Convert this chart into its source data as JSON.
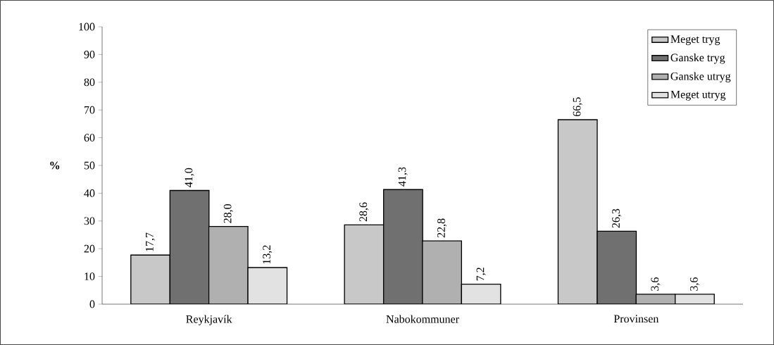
{
  "chart_data": {
    "type": "bar",
    "ylabel": "%",
    "categories": [
      "Reykjavík",
      "Nabokommuner",
      "Provinsen"
    ],
    "series": [
      {
        "name": "Meget tryg",
        "color": "#c8c8c8",
        "values": [
          17.7,
          28.6,
          66.5
        ],
        "value_labels": [
          "17,7",
          "28,6",
          "66,5"
        ]
      },
      {
        "name": "Ganske tryg",
        "color": "#707070",
        "values": [
          41.0,
          41.3,
          26.3
        ],
        "value_labels": [
          "41,0",
          "41,3",
          "26,3"
        ]
      },
      {
        "name": "Ganske utryg",
        "color": "#b0b0b0",
        "values": [
          28.0,
          22.8,
          3.6
        ],
        "value_labels": [
          "28,0",
          "22,8",
          "3,6"
        ]
      },
      {
        "name": "Meget utryg",
        "color": "#e2e2e2",
        "values": [
          13.2,
          7.2,
          3.6
        ],
        "value_labels": [
          "13,2",
          "7,2",
          "3,6"
        ]
      }
    ],
    "ylim": [
      0,
      100
    ],
    "yticks": [
      0,
      10,
      20,
      30,
      40,
      50,
      60,
      70,
      80,
      90,
      100
    ],
    "legend": "top right",
    "grid": false
  }
}
